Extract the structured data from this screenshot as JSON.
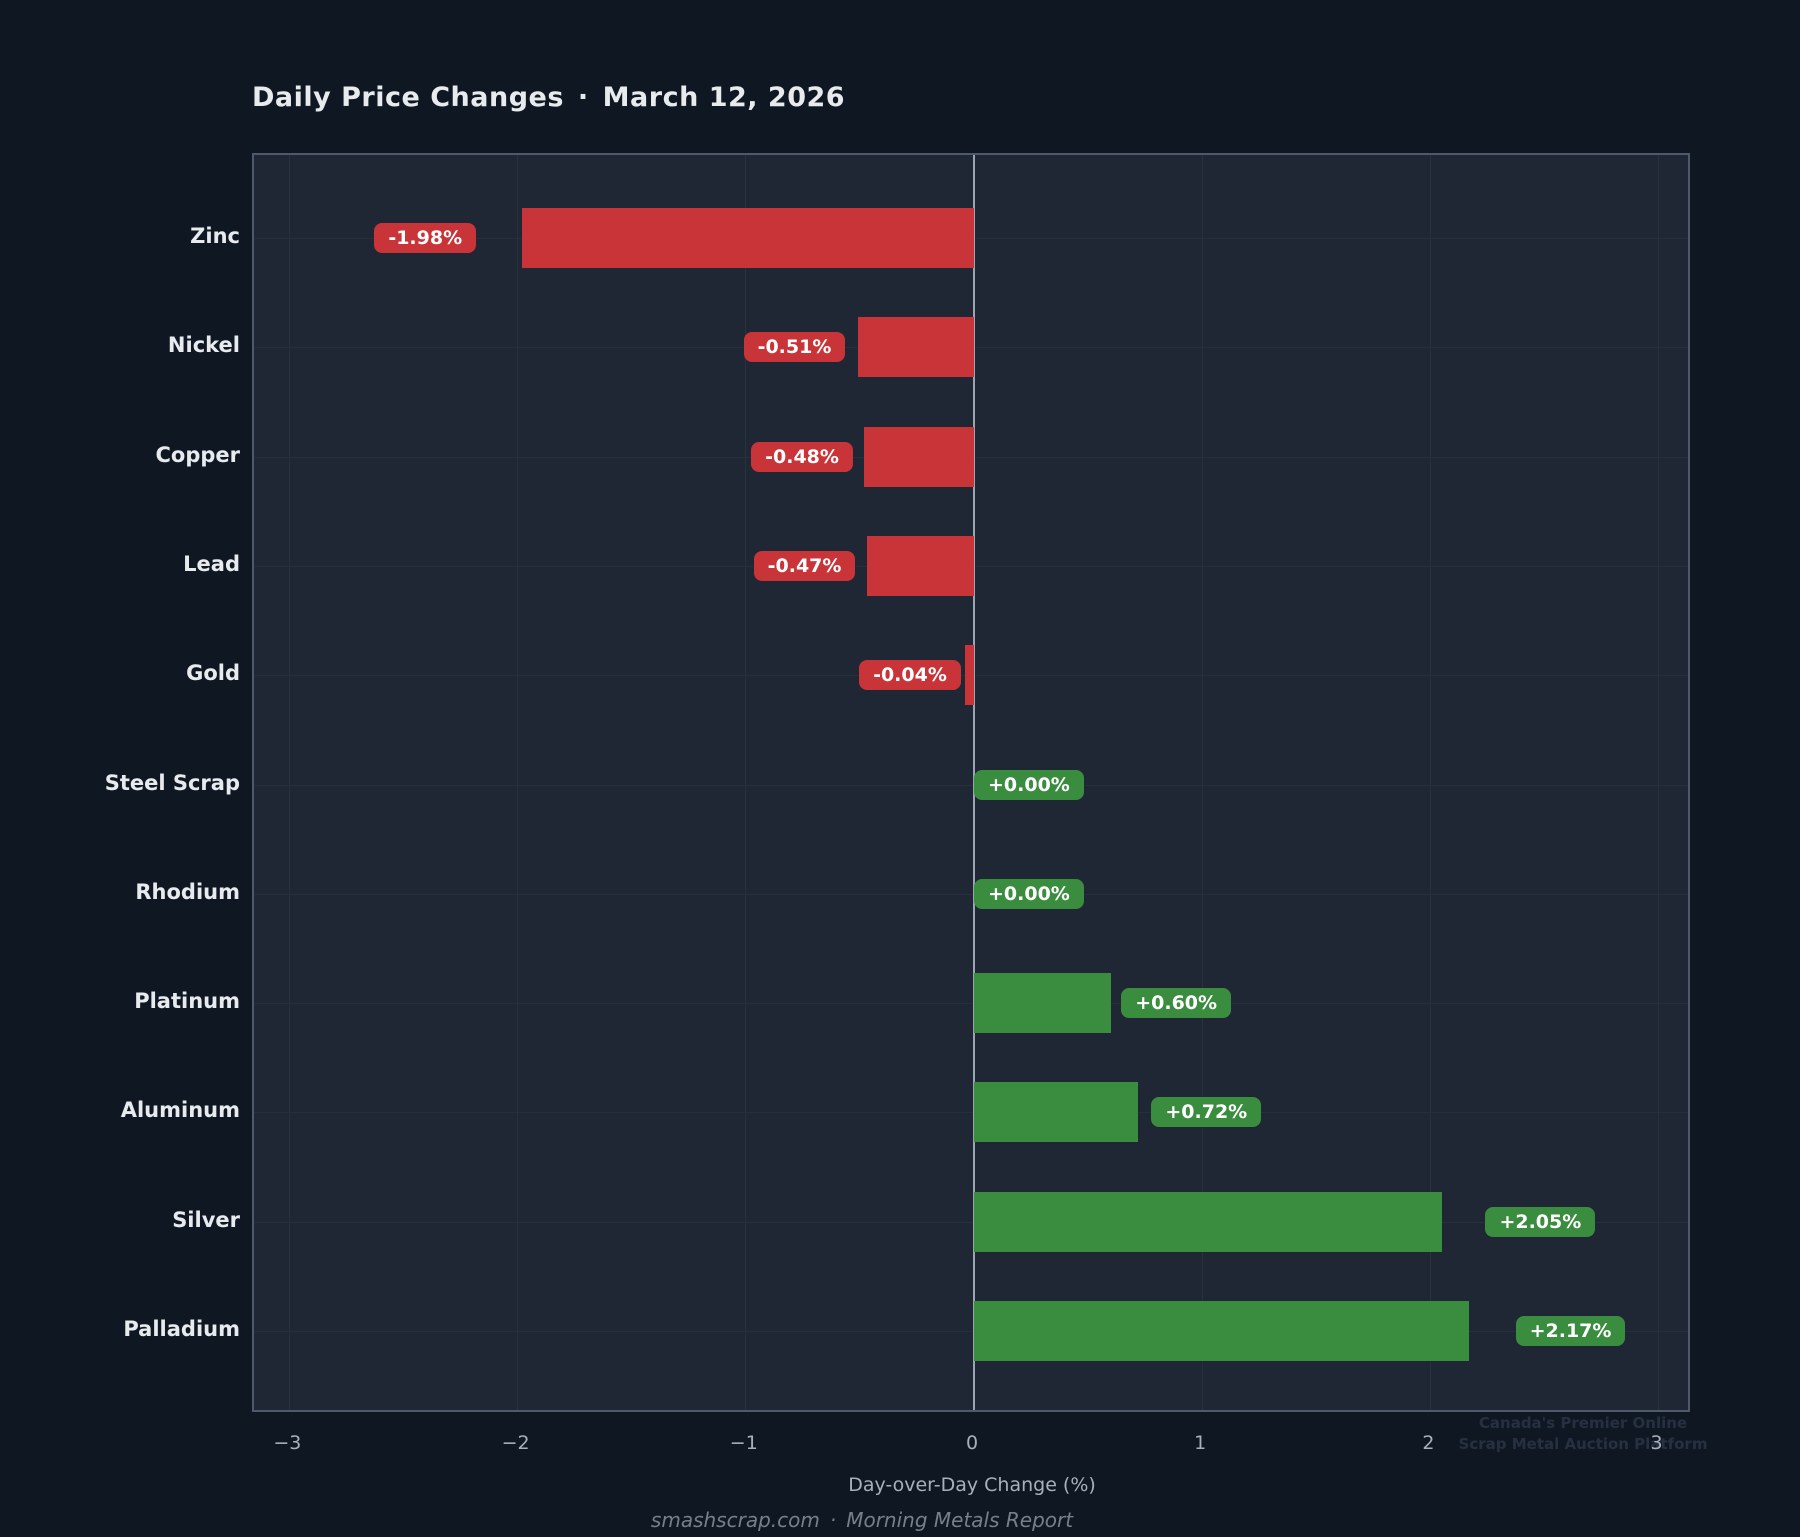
{
  "title": {
    "text": "Daily Price Changes",
    "separator": "·",
    "date": "March 12, 2026"
  },
  "chart_data": {
    "type": "bar",
    "orientation": "horizontal",
    "categories": [
      "Zinc",
      "Nickel",
      "Copper",
      "Lead",
      "Gold",
      "Steel Scrap",
      "Rhodium",
      "Platinum",
      "Aluminum",
      "Silver",
      "Palladium"
    ],
    "values": [
      -1.98,
      -0.51,
      -0.48,
      -0.47,
      -0.04,
      0.0,
      0.0,
      0.6,
      0.72,
      2.05,
      2.17
    ],
    "bar_labels": [
      "-1.98%",
      "-0.51%",
      "-0.48%",
      "-0.47%",
      "-0.04%",
      "+0.00%",
      "+0.00%",
      "+0.60%",
      "+0.72%",
      "+2.05%",
      "+2.17%"
    ],
    "xlabel": "Day-over-Day Change (%)",
    "xticks": [
      -3,
      -2,
      -1,
      0,
      1,
      2,
      3
    ],
    "xtick_labels": [
      "−3",
      "−2",
      "−1",
      "0",
      "1",
      "2",
      "3"
    ],
    "xlim": [
      -3.16,
      3.15
    ],
    "grid": true,
    "legend": "none",
    "colors": {
      "negative": "#c93438",
      "positive": "#3a8c3f",
      "background": "#0f1722",
      "plot_background": "#1e2733",
      "zero_line": "#9aa5b1"
    }
  },
  "footer": {
    "site": "smashscrap.com",
    "separator": "·",
    "report": "Morning Metals Report"
  },
  "watermark": {
    "line1": "Canada's Premier Online",
    "line2": "Scrap Metal Auction Platform"
  }
}
